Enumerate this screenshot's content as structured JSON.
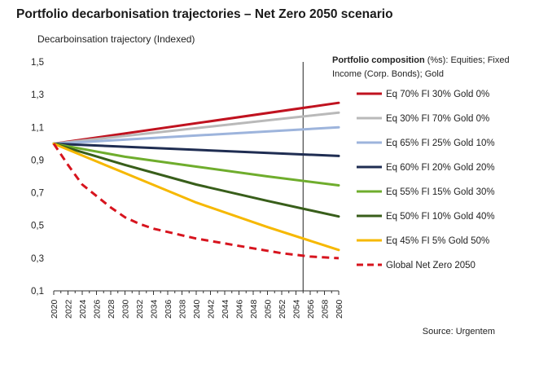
{
  "title": "Portfolio decarbonisation trajectories – Net Zero 2050 scenario",
  "source": "Source: Urgentem",
  "legend_header": {
    "bold": "Portfolio composition",
    "rest": " (%s): Equities; Fixed Income (Corp. Bonds); Gold"
  },
  "chart_data": {
    "type": "line",
    "ylabel": "Decarboinsation trajectory (Indexed)",
    "xlabel": "",
    "xlim": [
      2020,
      2060
    ],
    "ylim": [
      0.1,
      1.5
    ],
    "y_ticks": [
      "0,1",
      "0,3",
      "0,5",
      "0,7",
      "0,9",
      "1,1",
      "1,3",
      "1,5"
    ],
    "y_tick_values": [
      0.1,
      0.3,
      0.5,
      0.7,
      0.9,
      1.1,
      1.3,
      1.5
    ],
    "x_ticks": [
      2020,
      2022,
      2024,
      2026,
      2028,
      2030,
      2032,
      2034,
      2036,
      2038,
      2040,
      2042,
      2044,
      2046,
      2048,
      2050,
      2052,
      2054,
      2056,
      2058,
      2060
    ],
    "vertical_marker": 2055,
    "grid": false,
    "legend_position": "right",
    "series": [
      {
        "name": "Eq 70% FI 30% Gold 0%",
        "color": "#c0121f",
        "dash": false,
        "x": [
          2020,
          2060
        ],
        "y": [
          1.0,
          1.25
        ]
      },
      {
        "name": "Eq 30% FI 70% Gold 0%",
        "color": "#b9b9b9",
        "dash": false,
        "x": [
          2020,
          2060
        ],
        "y": [
          1.0,
          1.19
        ]
      },
      {
        "name": "Eq 65% FI 25% Gold 10%",
        "color": "#9db4dc",
        "dash": false,
        "x": [
          2020,
          2060
        ],
        "y": [
          1.0,
          1.1
        ]
      },
      {
        "name": "Eq 60% FI 20% Gold 20%",
        "color": "#1f2d52",
        "dash": false,
        "x": [
          2020,
          2060
        ],
        "y": [
          1.0,
          0.925
        ]
      },
      {
        "name": "Eq 55% FI 15% Gold 30%",
        "color": "#6fad2d",
        "dash": false,
        "x": [
          2020,
          2030,
          2040,
          2050,
          2060
        ],
        "y": [
          1.0,
          0.92,
          0.86,
          0.8,
          0.745
        ]
      },
      {
        "name": "Eq 50% FI 10% Gold 40%",
        "color": "#385e1a",
        "dash": false,
        "x": [
          2020,
          2030,
          2040,
          2050,
          2060
        ],
        "y": [
          1.0,
          0.87,
          0.75,
          0.65,
          0.555
        ]
      },
      {
        "name": "Eq 45% FI 5% Gold 50%",
        "color": "#f6b800",
        "dash": false,
        "x": [
          2020,
          2030,
          2040,
          2050,
          2060
        ],
        "y": [
          1.0,
          0.82,
          0.64,
          0.49,
          0.35
        ]
      },
      {
        "name": "Global Net Zero 2050",
        "color": "#d7141e",
        "dash": true,
        "x": [
          2020,
          2022,
          2024,
          2026,
          2028,
          2030,
          2032,
          2034,
          2036,
          2038,
          2040,
          2042,
          2044,
          2046,
          2048,
          2050,
          2052,
          2054,
          2056,
          2058,
          2060
        ],
        "y": [
          1.0,
          0.87,
          0.75,
          0.68,
          0.61,
          0.55,
          0.51,
          0.48,
          0.46,
          0.44,
          0.42,
          0.405,
          0.39,
          0.375,
          0.36,
          0.345,
          0.33,
          0.32,
          0.31,
          0.305,
          0.3
        ]
      }
    ]
  }
}
